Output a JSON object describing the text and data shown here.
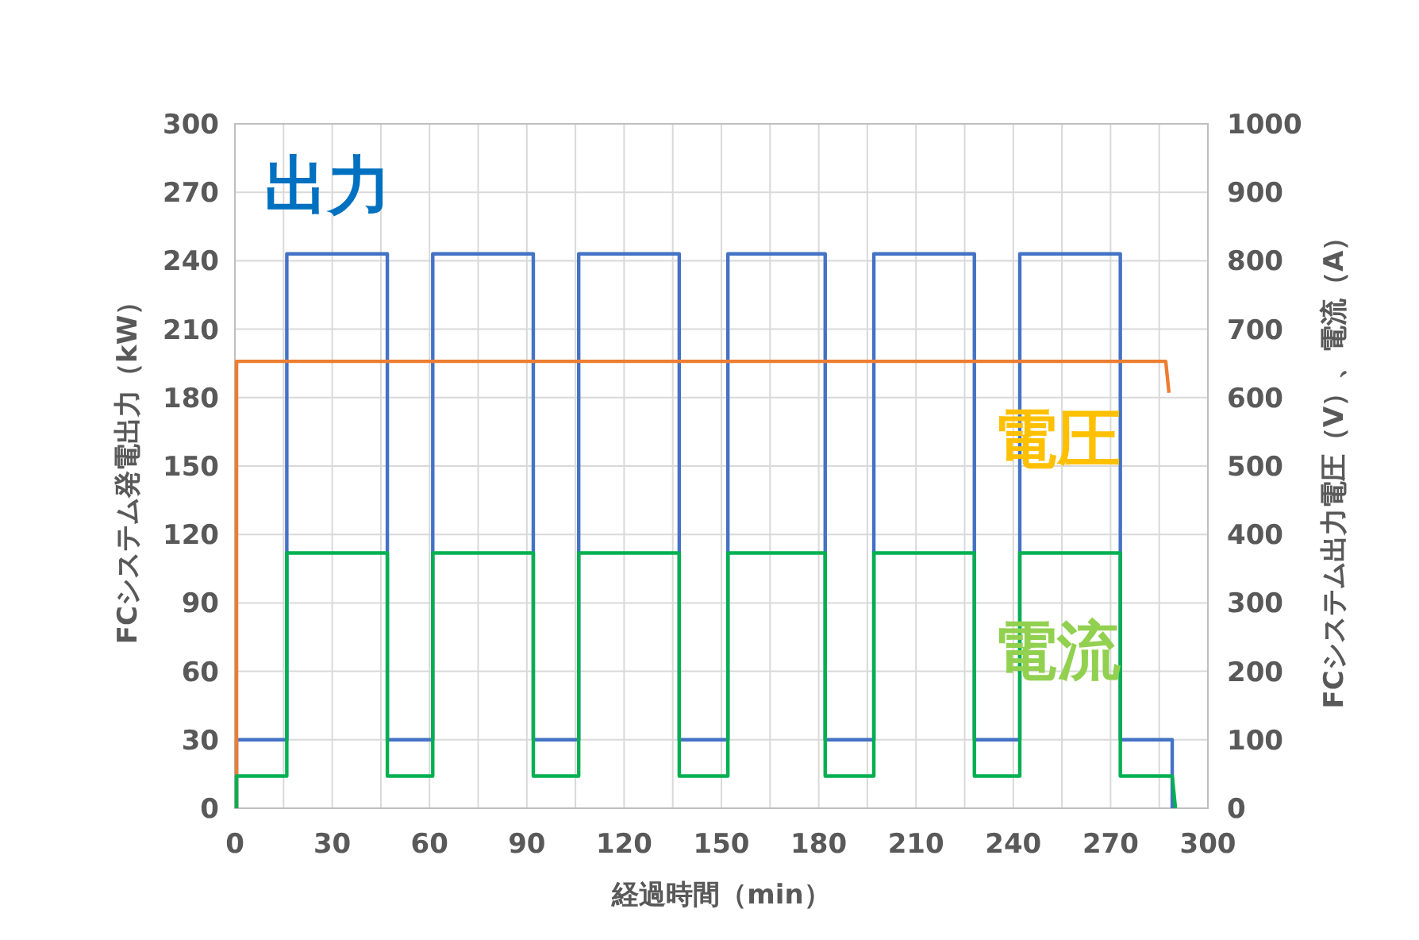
{
  "chart_data": {
    "type": "line",
    "xlabel": "経過時間（min）",
    "ylabel": "FCシステム発電出力（kW）",
    "y2label": "FCシステム出力電圧（V）、電流（A）",
    "xlim": [
      0,
      300
    ],
    "xticks": [
      0,
      {
        "value": 15,
        "label": null
      },
      30,
      {
        "value": 45,
        "label": null
      },
      60,
      {
        "value": 75,
        "label": null
      },
      90,
      {
        "value": 105,
        "label": null
      },
      120,
      {
        "value": 135,
        "label": null
      },
      150,
      {
        "value": 165,
        "label": null
      },
      180,
      {
        "value": 195,
        "label": null
      },
      210,
      {
        "value": 225,
        "label": null
      },
      240,
      {
        "value": 255,
        "label": null
      },
      270,
      {
        "value": 285,
        "label": null
      },
      300
    ],
    "ylim": [
      0,
      300
    ],
    "yticks": [
      0,
      30,
      60,
      90,
      120,
      150,
      180,
      210,
      240,
      270,
      300
    ],
    "y2lim": [
      0,
      1000
    ],
    "y2ticks": [
      0,
      100,
      200,
      300,
      400,
      500,
      600,
      700,
      800,
      900,
      1000
    ],
    "grid": true,
    "legend": false,
    "marker": "none",
    "line_style": "solid",
    "series": [
      {
        "name": "出力",
        "color": "#4472c4",
        "x": [
          0.5,
          0.5,
          16,
          16,
          47,
          47,
          61,
          61,
          92,
          92,
          106,
          106,
          137,
          137,
          152,
          152,
          182,
          182,
          197,
          197,
          228,
          228,
          242,
          242,
          273,
          273,
          289,
          289
        ],
        "values": [
          0,
          30,
          30,
          243,
          243,
          30,
          30,
          243,
          243,
          30,
          30,
          243,
          243,
          30,
          30,
          243,
          243,
          30,
          30,
          243,
          243,
          30,
          30,
          243,
          243,
          30,
          30,
          0
        ]
      },
      {
        "name": "電圧",
        "color": "#ed7d31",
        "axis": "y2",
        "x": [
          0.5,
          0.5,
          287,
          288
        ],
        "values": [
          0,
          653,
          653,
          607
        ]
      },
      {
        "name": "電流",
        "color": "#00b050",
        "axis": "y2",
        "x": [
          0.5,
          0.5,
          16,
          16,
          47,
          47,
          61,
          61,
          92,
          92,
          106,
          106,
          137,
          137,
          152,
          152,
          182,
          182,
          197,
          197,
          228,
          228,
          242,
          242,
          273,
          273,
          289,
          290
        ],
        "values": [
          0,
          47,
          47,
          373,
          373,
          47,
          47,
          373,
          373,
          47,
          47,
          373,
          373,
          47,
          47,
          373,
          373,
          47,
          47,
          373,
          373,
          47,
          47,
          373,
          373,
          47,
          47,
          0
        ]
      }
    ]
  }
}
